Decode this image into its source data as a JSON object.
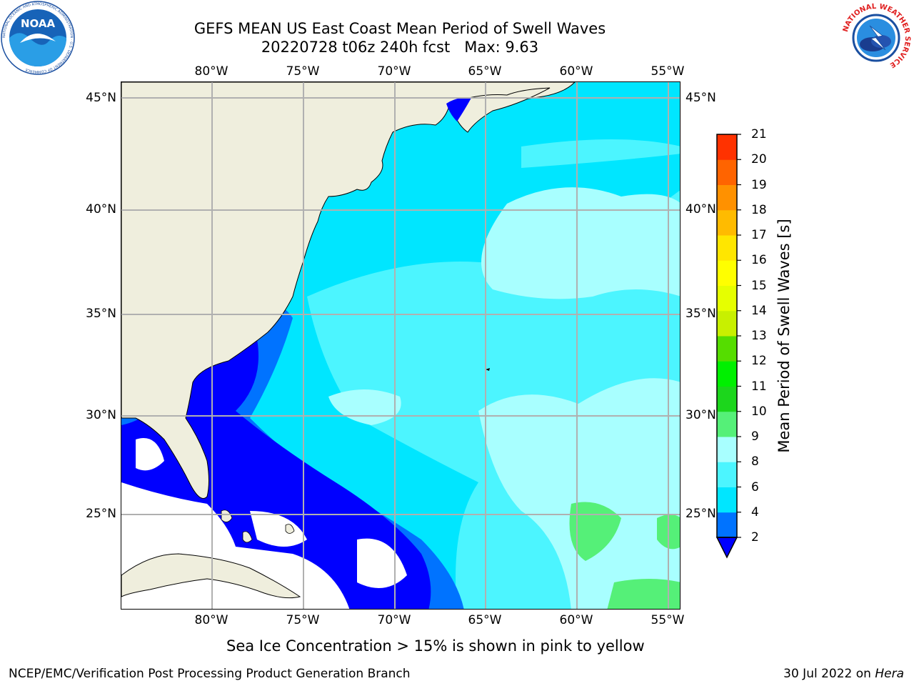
{
  "header": {
    "title_line1": "GEFS MEAN US East Coast Mean Period of Swell Waves",
    "title_line2": "20220728 t06z 240h fcst   Max: 9.63"
  },
  "logos": {
    "noaa_text": "NOAA",
    "noaa_ring": "NATIONAL OCEANIC AND ATMOSPHERIC ADMINISTRATION · U.S. DEPARTMENT OF COMMERCE",
    "nws_ring": "NATIONAL WEATHER SERVICE"
  },
  "map": {
    "longitude_labels": [
      "80°W",
      "75°W",
      "70°W",
      "65°W",
      "60°W",
      "55°W"
    ],
    "latitude_labels": [
      "45°N",
      "40°N",
      "35°N",
      "30°N",
      "25°N"
    ]
  },
  "colorbar": {
    "label": "Mean Period of Swell Waves [s]",
    "ticks": [
      "2",
      "4",
      "6",
      "8",
      "9",
      "10",
      "11",
      "12",
      "13",
      "14",
      "15",
      "16",
      "17",
      "18",
      "19",
      "20",
      "21"
    ],
    "colors": [
      "#0000ff",
      "#0073ff",
      "#00e6ff",
      "#4cf5ff",
      "#a8ffff",
      "#55f078",
      "#1cd61c",
      "#00f000",
      "#55dd00",
      "#c8f000",
      "#e6ff00",
      "#ffff00",
      "#ffe600",
      "#ffbb00",
      "#ff9100",
      "#ff6400",
      "#ff3200",
      "#ff0000"
    ],
    "extend": "min"
  },
  "footer": {
    "note": "Sea Ice Concentration > 15% is shown in pink to yellow",
    "credit_left": "NCEP/EMC/Verification Post Processing Product Generation Branch",
    "credit_date": "30 Jul 2022 on ",
    "credit_machine": "Hera"
  },
  "colors": {
    "land": "#efeedd",
    "gridline": "#b0b0b0",
    "background": "#ffffff"
  }
}
